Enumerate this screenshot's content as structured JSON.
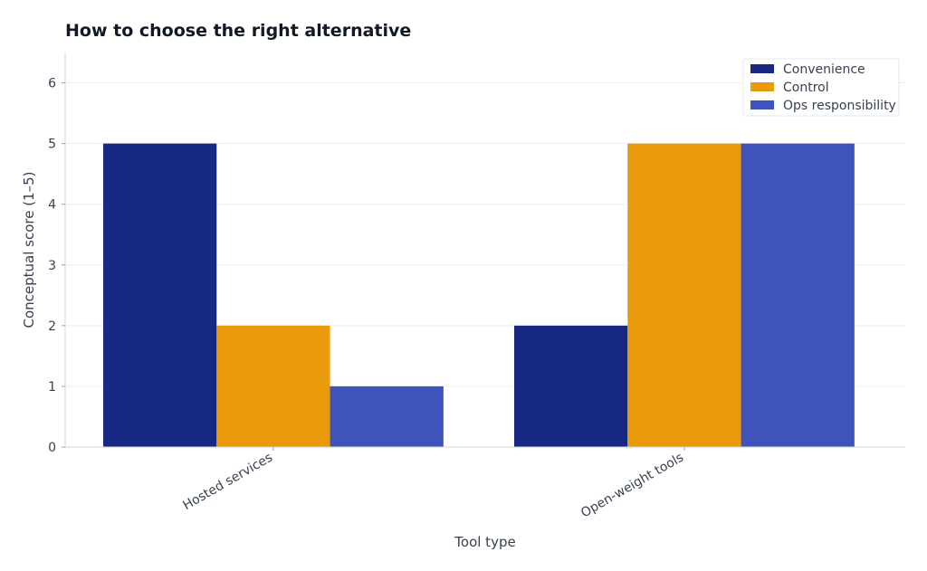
{
  "chart_data": {
    "type": "bar",
    "title": "How to choose the right alternative",
    "xlabel": "Tool type",
    "ylabel": "Conceptual score (1–5)",
    "categories": [
      "Hosted services",
      "Open-weight tools"
    ],
    "series": [
      {
        "name": "Convenience",
        "values": [
          5,
          2
        ],
        "color": "#172983"
      },
      {
        "name": "Control",
        "values": [
          2,
          5
        ],
        "color": "#E99A0B"
      },
      {
        "name": "Ops responsibility",
        "values": [
          1,
          5
        ],
        "color": "#3F54BA"
      }
    ],
    "ylim": [
      0,
      6.5
    ],
    "yticks": [
      0,
      1,
      2,
      3,
      4,
      5,
      6
    ],
    "grid": true,
    "legend_position": "top-right"
  }
}
